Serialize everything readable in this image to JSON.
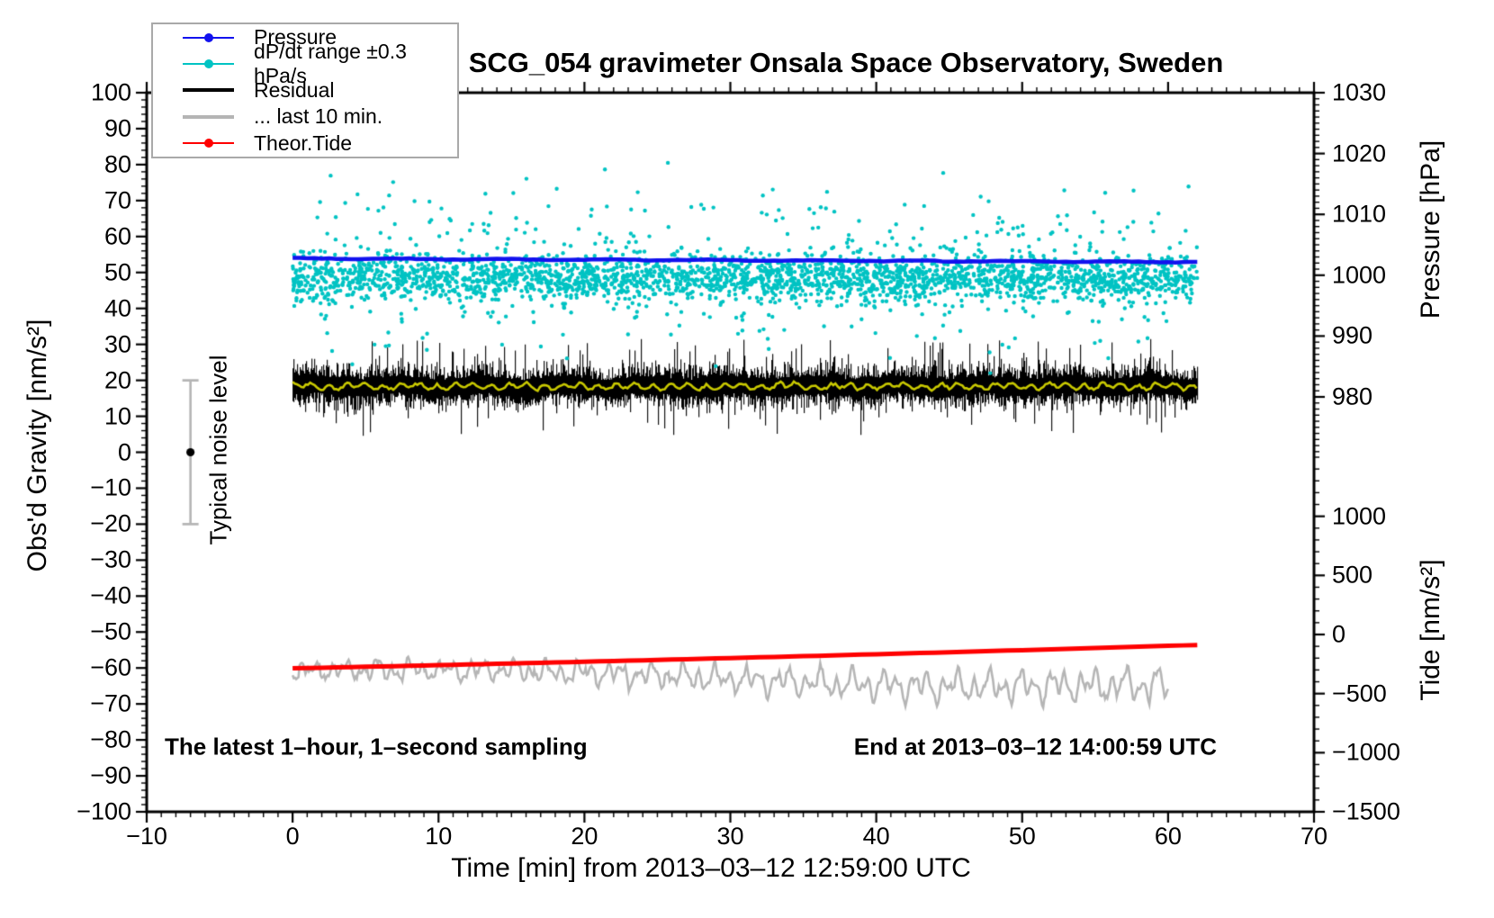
{
  "title": "SCG_054 gravimeter Onsala Space Observatory, Sweden",
  "x_axis": {
    "label": "Time [min] from 2013–03–12 12:59:00 UTC",
    "tick_values": [
      -10,
      0,
      10,
      20,
      30,
      40,
      50,
      60,
      70
    ],
    "tick_labels": [
      "−10",
      "0",
      "10",
      "20",
      "30",
      "40",
      "50",
      "60",
      "70"
    ]
  },
  "y_axis_left": {
    "label": "Obs'd Gravity [nm/s²]",
    "tick_values": [
      100,
      90,
      80,
      70,
      60,
      50,
      40,
      30,
      20,
      10,
      0,
      -10,
      -20,
      -30,
      -40,
      -50,
      -60,
      -70,
      -80,
      -90,
      -100
    ],
    "tick_labels": [
      "100",
      "90",
      "80",
      "70",
      "60",
      "50",
      "40",
      "30",
      "20",
      "10",
      "0",
      "−10",
      "−20",
      "−30",
      "−40",
      "−50",
      "−60",
      "−70",
      "−80",
      "−90",
      "−100"
    ]
  },
  "y_axis_pressure": {
    "label": "Pressure [hPa]",
    "tick_values": [
      1030,
      1020,
      1010,
      1000,
      990,
      980
    ],
    "tick_labels": [
      "1030",
      "1020",
      "1010",
      "1000",
      "990",
      "980"
    ]
  },
  "y_axis_tide": {
    "label": "Tide [nm/s²]",
    "tick_values": [
      1000,
      500,
      0,
      -500,
      -1000,
      -1500
    ],
    "tick_labels": [
      "1000",
      "500",
      "0",
      "−500",
      "−1000",
      "−1500"
    ]
  },
  "annotations": {
    "bottom_left": "The latest 1–hour, 1–second sampling",
    "bottom_right": "End at 2013–03–12 14:00:59 UTC",
    "noise_bar_label": "Typical noise level"
  },
  "legend": {
    "items": [
      {
        "label": "Pressure",
        "color": "#1212EE",
        "weight": "thin",
        "dot": true
      },
      {
        "label": "dP/dt range ±0.3 hPa/s",
        "color": "#00C3C3",
        "weight": "thin",
        "dot": true
      },
      {
        "label": "Residual",
        "color": "#000000",
        "weight": "thick",
        "dot": false
      },
      {
        "label": "... last 10 min.",
        "color": "#B5B5B5",
        "weight": "thick",
        "dot": false
      },
      {
        "label": "Theor.Tide",
        "color": "#FF0000",
        "weight": "thin",
        "dot": true
      }
    ]
  },
  "chart_data": {
    "type": "line",
    "title": "SCG_054 gravimeter Onsala Space Observatory, Sweden",
    "xlabel": "Time [min] from 2013–03–12 12:59:00 UTC",
    "x_range_min": [
      -10,
      70
    ],
    "left_axis": {
      "label": "Obs'd Gravity [nm/s²]",
      "range": [
        -100,
        100
      ],
      "major_step": 10,
      "minor_step": 2
    },
    "pressure_axis": {
      "label": "Pressure [hPa]",
      "top_value": 1030,
      "bottom_value": 980,
      "major_step": 10,
      "minor_step": 1
    },
    "tide_axis": {
      "label": "Tide [nm/s²]",
      "top_value": 1000,
      "bottom_value": -1500,
      "major_step": 500,
      "minor_step": 100
    },
    "grid": false,
    "legend_position": "top-left",
    "series": [
      {
        "name": "Pressure",
        "type": "line",
        "color": "#1212EE",
        "value_axis": "pressure_hPa",
        "x_start": 0,
        "x_end": 62,
        "start_hPa": 1003.6,
        "end_hPa": 1002.2,
        "left_axis_equiv_start": 53.9,
        "left_axis_equiv_end": 52.9,
        "line_width": 4.5,
        "seed": 3
      },
      {
        "name": "dP/dt range ±0.3 hPa/s",
        "type": "scatter",
        "color": "#00C3C3",
        "x_range": [
          0,
          62
        ],
        "n_points": 3000,
        "band_center": 48.5,
        "band_sigma": 3.1,
        "outlier_fraction": 0.1,
        "upper_outlier_share": 0.6,
        "y_extent": [
          22,
          80.5
        ],
        "units": "left axis nm/s²",
        "dot_radius": 2.2,
        "seed": 7
      },
      {
        "name": "Residual",
        "type": "noisy_band",
        "color": "#000000",
        "x_range": [
          0,
          62
        ],
        "center": 18.4,
        "typical_half_range": [
          2.2,
          9
        ],
        "max_excursion_low": 5,
        "max_excursion_high": 31,
        "units": "left axis nm/s²",
        "seed": 11
      },
      {
        "name": "Residual smoothed",
        "type": "line",
        "color": "#C9C900",
        "x_range": [
          0,
          62
        ],
        "center": 18.3,
        "wobble_amplitude": 1.0,
        "line_width": 2.6,
        "seed": 23
      },
      {
        "name": "... last 10 min.",
        "type": "line",
        "color": "#B5B5B5",
        "x_range": [
          0,
          60
        ],
        "start": -60.8,
        "end": -65.0,
        "oscillation_amplitude": [
          2.4,
          4.6
        ],
        "min_reached": -71,
        "max_reached": -55,
        "units": "left axis nm/s²",
        "line_width": 2.6,
        "seed": 5
      },
      {
        "name": "Theor.Tide",
        "type": "line",
        "color": "#FF0000",
        "value_axis": "tide_nm_s2",
        "x_start": 0,
        "x_end": 62,
        "start_tide": -285,
        "end_tide": -100,
        "left_axis_equiv_start": -60.1,
        "left_axis_equiv_end": -53.6,
        "line_width": 5,
        "seed": 2
      }
    ],
    "noise_bar": {
      "x_min": -7,
      "center_value": 0,
      "half_range": 20,
      "bar_color": "#B5B5B5",
      "dot_color": "#000000",
      "label": "Typical noise level"
    }
  }
}
